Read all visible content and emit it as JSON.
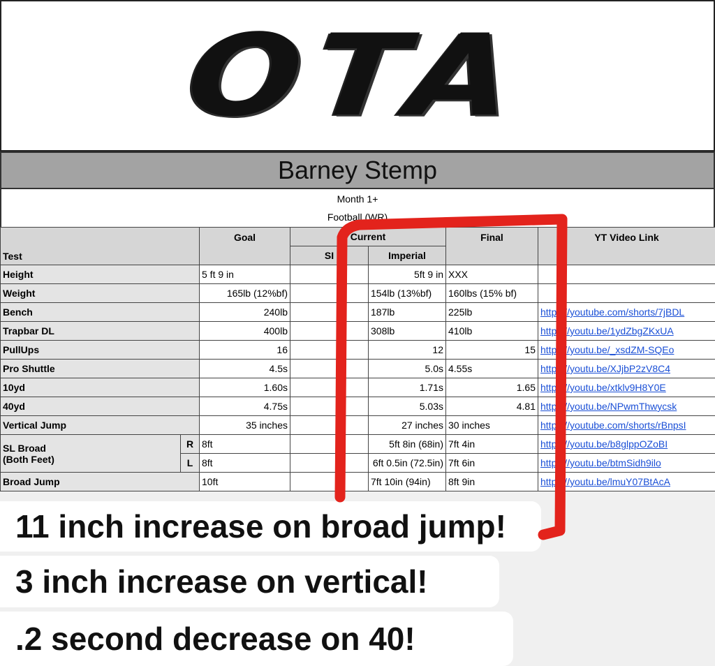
{
  "logo": "OTA",
  "athlete": "Barney Stemp",
  "subtitle": [
    "Month 1+",
    "Football (WR)"
  ],
  "table": {
    "headers": {
      "test": "Test",
      "goal": "Goal",
      "current": "Current",
      "si": "SI",
      "imperial": "Imperial",
      "final": "Final",
      "link": "YT Video Link"
    },
    "rows": [
      {
        "test": "Height",
        "goal": "5 ft 9 in",
        "current": "5ft 9 in",
        "final": "XXX"
      },
      {
        "test": "Weight",
        "goal": "165lb (12%bf)",
        "current": "154lb (13%bf)",
        "final": "160lbs (15% bf)"
      },
      {
        "test": "Bench",
        "goal": "240lb",
        "current": "187lb",
        "final": "225lb",
        "link": "https://youtube.com/shorts/7jBDL"
      },
      {
        "test": "Trapbar DL",
        "goal": "400lb",
        "current": "308lb",
        "final": "410lb",
        "link": "https://youtu.be/1ydZbgZKxUA"
      },
      {
        "test": "PullUps",
        "goal": "16",
        "current": "12",
        "final": "15",
        "link": "https://youtu.be/_xsdZM-SQEo"
      },
      {
        "test": "Pro Shuttle",
        "goal": "4.5s",
        "current": "5.0s",
        "final": "4.55s",
        "link": "https://youtu.be/XJjbP2zV8C4"
      },
      {
        "test": "10yd",
        "goal": "1.60s",
        "current": "1.71s",
        "final": "1.65",
        "link": "https://youtu.be/xtklv9H8Y0E"
      },
      {
        "test": "40yd",
        "goal": "4.75s",
        "current": "5.03s",
        "final": "4.81",
        "link": "https://youtu.be/NPwmThwycsk"
      },
      {
        "test": "Vertical Jump",
        "goal": "35 inches",
        "current": "27 inches",
        "final": "30 inches",
        "link": "https://youtube.com/shorts/rBnpsI"
      },
      {
        "test": "SL Broad",
        "test_line2": "(Both Feet)",
        "side": "R",
        "goal": "8ft",
        "current": "5ft 8in (68in)",
        "final": "7ft 4in",
        "link": "https://youtu.be/b8glppOZoBI"
      },
      {
        "side": "L",
        "goal": "8ft",
        "current": "6ft 0.5in (72.5in)",
        "final": "7ft 6in",
        "link": "https://youtu.be/btmSidh9ilo"
      },
      {
        "test": "Broad Jump",
        "goal": "10ft",
        "current": "7ft 10in (94in)",
        "final": "8ft 9in",
        "link": "https://youtu.be/lmuY07BtAcA"
      }
    ]
  },
  "captions": [
    "11 inch increase on broad jump!",
    "3 inch increase on vertical!",
    ".2 second decrease on 40!"
  ]
}
